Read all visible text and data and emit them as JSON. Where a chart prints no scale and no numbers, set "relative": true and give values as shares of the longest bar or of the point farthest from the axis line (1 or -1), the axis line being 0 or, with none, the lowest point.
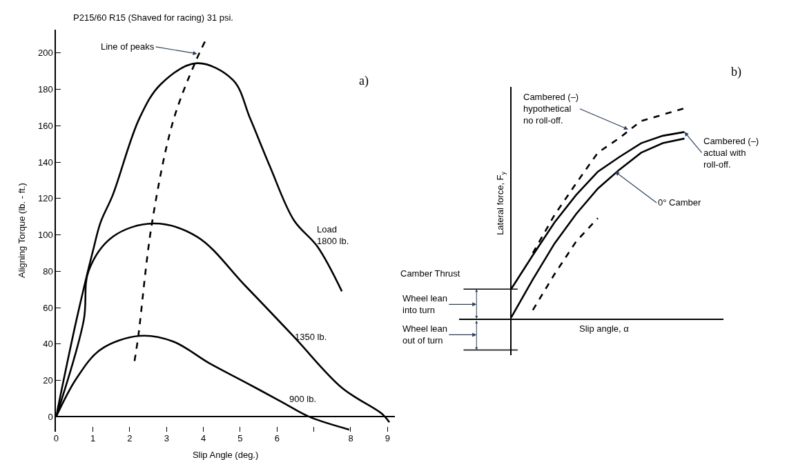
{
  "chart_data": [
    {
      "type": "line",
      "title": "P215/60 R15 (Shaved for racing) 31 psi.",
      "xlabel": "Slip Angle (deg.)",
      "ylabel": "Aligning Torque (lb. - ft.)",
      "xlim": [
        0,
        9.2
      ],
      "ylim": [
        -8,
        213
      ],
      "xticks": [
        0,
        1,
        2,
        3,
        4,
        5,
        6,
        {
          "value": 7,
          "label": null
        },
        8,
        9
      ],
      "yticks": [
        0,
        20,
        40,
        60,
        80,
        100,
        120,
        140,
        160,
        180,
        200
      ],
      "grid": false,
      "legend": false,
      "line_style": "solid",
      "marker": "none",
      "series": [
        {
          "name": "Load\n1800 lb.",
          "color": "#000000",
          "x": [
            0,
            0.55,
            1.01,
            1.21,
            1.54,
            2.26,
            2.85,
            3.83,
            4.81,
            5.27,
            5.8,
            6.46,
            7.1,
            7.76
          ],
          "values": [
            0,
            53,
            92,
            107,
            122,
            164,
            183,
            194.4,
            185,
            164,
            138,
            108,
            93.5,
            69
          ]
        },
        {
          "name": "1350 lb.",
          "color": "#000000",
          "x": [
            0,
            0.75,
            0.88,
            1.54,
            2.64,
            3.83,
            5.14,
            6.46,
            7.76,
            8.86,
            9.05
          ],
          "values": [
            0,
            53,
            80,
            99,
            106.3,
            99,
            72,
            44,
            16,
            1.5,
            -3
          ]
        },
        {
          "name": "900 lb.",
          "color": "#000000",
          "x": [
            0,
            0.55,
            1.21,
            2.26,
            3.17,
            4.16,
            5.14,
            6.12,
            6.88,
            7.96
          ],
          "values": [
            0,
            21,
            37,
            44.5,
            41.5,
            29.5,
            19,
            8.3,
            0,
            -7
          ]
        },
        {
          "color": "#000000",
          "line_style": "dashed",
          "x": [
            2.13,
            2.23,
            2.6,
            3.17,
            3.76,
            4.06
          ],
          "values": [
            30.7,
            44,
            106,
            162,
            194,
            207
          ]
        }
      ],
      "annotations": [
        {
          "text": "Line of peaks",
          "x": 3.83,
          "y": 199.6
        },
        "a)"
      ]
    },
    {
      "type": "line",
      "relative": true,
      "xlabel": "Slip angle, α",
      "ylabel": "Lateral force, F$_{y}$",
      "categories": [
        null,
        null,
        null,
        null,
        null,
        null,
        null,
        null,
        null
      ],
      "legend": false,
      "marker": "none",
      "series": [
        {
          "color": "#000000",
          "line_style": "dashed",
          "values": [
            null,
            0.315,
            0.495,
            0.645,
            0.79,
            0.86,
            0.94,
            0.97,
            1.0
          ]
        },
        {
          "color": "#000000",
          "line_style": "solid",
          "values": [
            0.145,
            0.305,
            0.46,
            0.59,
            0.7,
            0.77,
            0.835,
            0.87,
            0.888
          ]
        },
        {
          "color": "#000000",
          "line_style": "solid",
          "values": [
            0.01,
            0.19,
            0.36,
            0.5,
            0.62,
            0.71,
            0.79,
            0.835,
            0.857
          ]
        },
        {
          "color": "#000000",
          "line_style": "dashed",
          "values": [
            null,
            0.045,
            0.215,
            0.37,
            0.48,
            null,
            null,
            null,
            null
          ]
        }
      ],
      "ref_lines": [
        {
          "axis": "y",
          "value": 0.144,
          "color": "#000000"
        },
        {
          "axis": "y",
          "value": -0.144,
          "color": "#000000"
        }
      ],
      "annotations": [
        "Cambered (–)\nhypothetical\nno roll-off.",
        "Cambered (–)\nactual with\nroll-off.",
        "0° Camber",
        "b)",
        "Camber Thrust",
        "Wheel lean\ninto turn",
        "Wheel lean\nout of turn"
      ]
    }
  ]
}
